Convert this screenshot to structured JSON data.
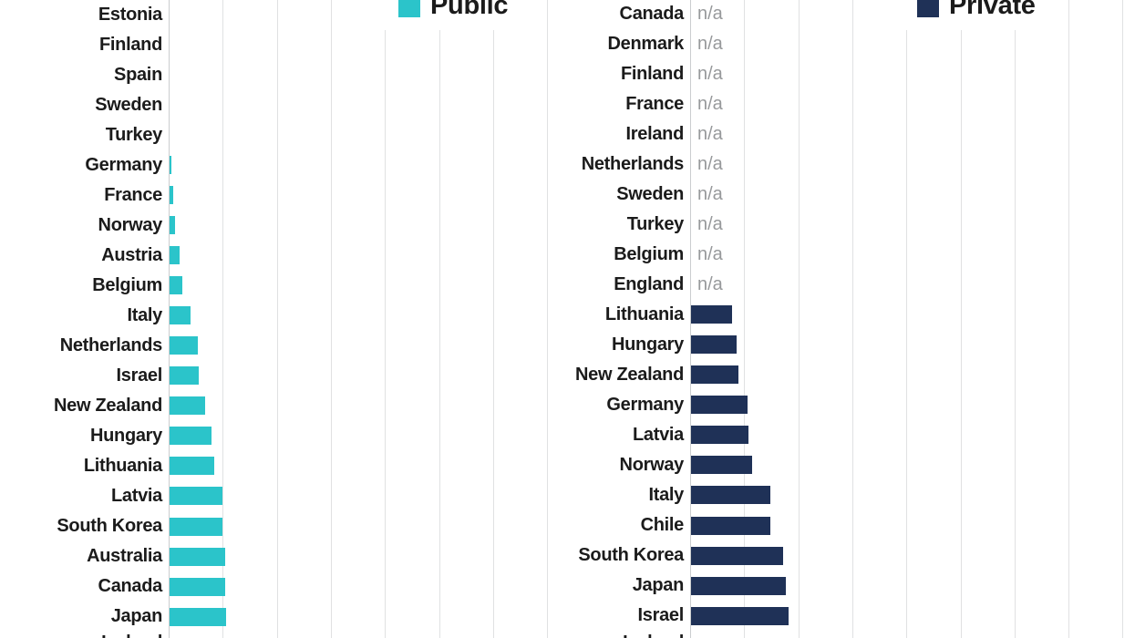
{
  "colors": {
    "public_teal": "#2bc4ca",
    "private_navy": "#1f3157",
    "na_text_gray": "#97999b",
    "label_text": "#1b1b1b",
    "gridline": "#e0e1e2",
    "axis_line": "#cbcdcf",
    "background": "#ffffff"
  },
  "chart_data": [
    {
      "type": "bar",
      "orientation": "horizontal",
      "series": "Public",
      "bar_color": "#2bc4ca",
      "categories": [
        "Estonia",
        "Finland",
        "Spain",
        "Sweden",
        "Turkey",
        "Germany",
        "France",
        "Norway",
        "Austria",
        "Belgium",
        "Italy",
        "Netherlands",
        "Israel",
        "New Zealand",
        "Hungary",
        "Lithuania",
        "Latvia",
        "South Korea",
        "Australia",
        "Canada",
        "Japan"
      ],
      "values": [
        0,
        0,
        0,
        0,
        0,
        0.3,
        0.6,
        1.0,
        1.9,
        2.4,
        3.9,
        5.3,
        5.4,
        6.6,
        7.8,
        8.3,
        9.7,
        9.7,
        10.2,
        10.2,
        10.4
      ],
      "partial_bottom_label": "Iceland",
      "xlim": [
        0,
        70
      ],
      "gridline_interval": 10,
      "legend_position": "top",
      "grid": "vertical",
      "axis_note": "x-axis tick labels cropped out of view; values estimated as gridline intervals x 10"
    },
    {
      "type": "bar",
      "orientation": "horizontal",
      "series": "Private",
      "bar_color": "#1f3157",
      "na_label": "n/a",
      "categories": [
        "Canada",
        "Denmark",
        "Finland",
        "France",
        "Ireland",
        "Netherlands",
        "Sweden",
        "Turkey",
        "Belgium",
        "England",
        "Lithuania",
        "Hungary",
        "New Zealand",
        "Germany",
        "Latvia",
        "Norway",
        "Italy",
        "Chile",
        "South Korea",
        "Japan",
        "Israel"
      ],
      "values": [
        null,
        null,
        null,
        null,
        null,
        null,
        null,
        null,
        null,
        null,
        7.6,
        8.5,
        8.7,
        10.4,
        10.6,
        11.3,
        14.6,
        14.6,
        17.0,
        17.5,
        18.0
      ],
      "partial_bottom_label": "Iceland",
      "xlim": [
        0,
        80
      ],
      "gridline_interval": 10,
      "legend_position": "top",
      "grid": "vertical",
      "axis_note": "x-axis tick labels cropped out of view; values estimated as gridline intervals x 10"
    }
  ]
}
